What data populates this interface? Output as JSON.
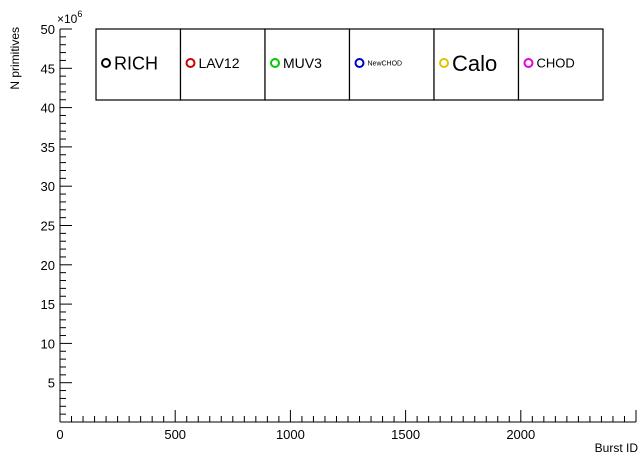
{
  "chart_data": {
    "type": "scatter",
    "title": "",
    "xlabel": "Burst ID",
    "ylabel": "N primitives",
    "y_exponent_label": "×10",
    "y_exponent_power": "6",
    "xlim": [
      0,
      2500
    ],
    "ylim": [
      0,
      50
    ],
    "x_ticks": [
      0,
      500,
      1000,
      1500,
      2000
    ],
    "x_tick_labels": [
      "0",
      "500",
      "1000",
      "1500",
      "2000"
    ],
    "y_ticks": [
      5,
      10,
      15,
      20,
      25,
      30,
      35,
      40,
      45,
      50
    ],
    "y_tick_labels": [
      "5",
      "10",
      "15",
      "20",
      "25",
      "30",
      "35",
      "40",
      "45",
      "50"
    ],
    "grid": false,
    "legend_position": "top",
    "series": [
      {
        "name": "RICH",
        "color": "#000000",
        "label_size": "large",
        "values": []
      },
      {
        "name": "LAV12",
        "color": "#cc0000",
        "label_size": "medium",
        "values": []
      },
      {
        "name": "MUV3",
        "color": "#00cc00",
        "label_size": "medium",
        "values": []
      },
      {
        "name": "NewCHOD",
        "color": "#0000cc",
        "label_size": "tiny",
        "values": []
      },
      {
        "name": "Calo",
        "color": "#e6c200",
        "label_size": "xlarge",
        "values": []
      },
      {
        "name": "CHOD",
        "color": "#e600e6",
        "label_size": "small",
        "values": []
      }
    ]
  }
}
